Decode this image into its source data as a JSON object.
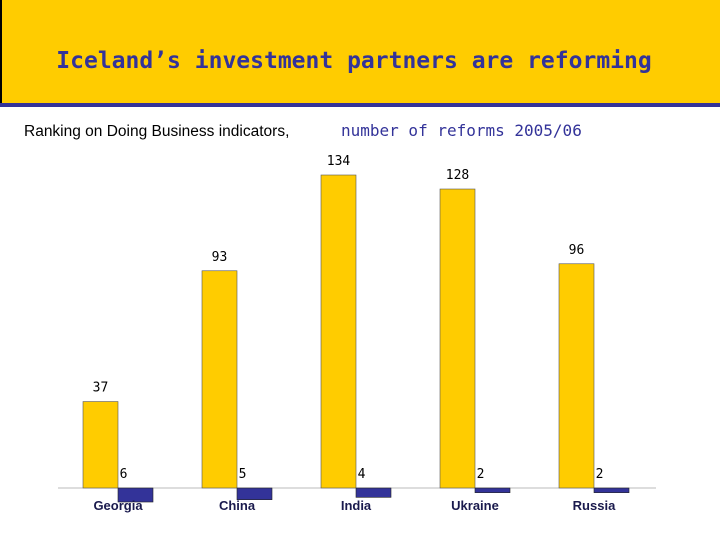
{
  "chart_data": {
    "type": "bar",
    "title": "Iceland’s investment partners are reforming",
    "subtitle": [
      "Ranking on Doing Business indicators,",
      "number of reforms 2005/06"
    ],
    "categories": [
      "Georgia",
      "China",
      "India",
      "Ukraine",
      "Russia"
    ],
    "series": [
      {
        "color": "#FFCC00",
        "values": [
          37,
          93,
          134,
          128,
          96
        ]
      },
      {
        "color": "#333399",
        "values": [
          6,
          5,
          4,
          2,
          2
        ]
      }
    ]
  }
}
